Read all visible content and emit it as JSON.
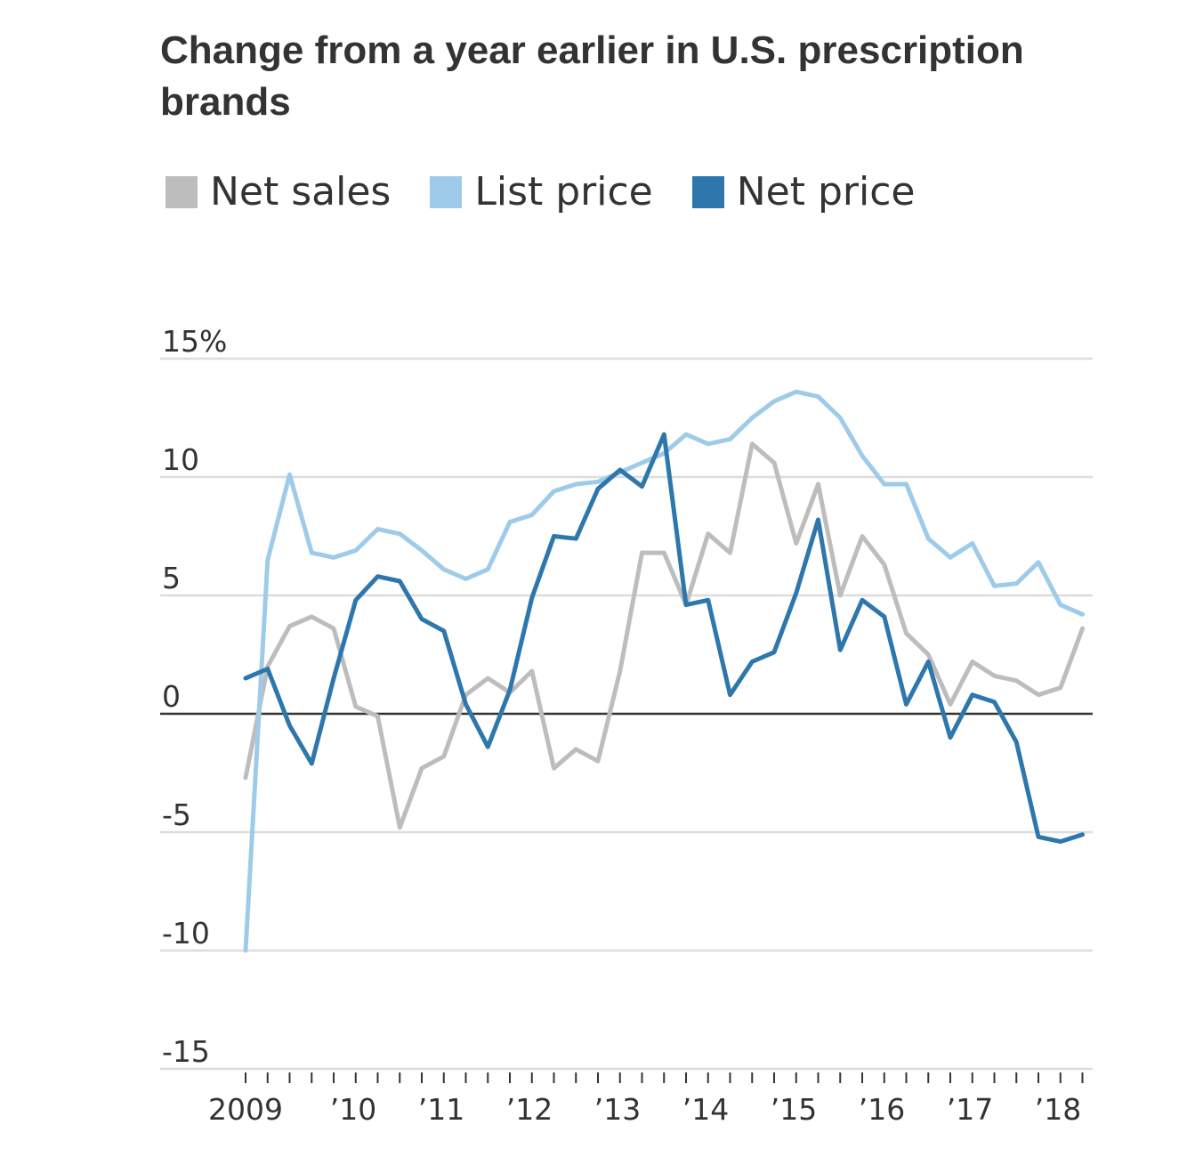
{
  "chart_data": {
    "type": "line",
    "title": "Change from a year earlier in U.S. prescription brands",
    "ylim": [
      -15,
      15
    ],
    "y_ticks": [
      15,
      10,
      5,
      0,
      -5,
      -10,
      -15
    ],
    "y_tick_labels": [
      "15%",
      "10",
      "5",
      "0",
      "-5",
      "-10",
      "-15"
    ],
    "x_tick_labels": [
      "2009",
      "’10",
      "’11",
      "’12",
      "’13",
      "’14",
      "’15",
      "’16",
      "’17",
      "’18"
    ],
    "x_tick_years": [
      2009,
      2010,
      2011,
      2012,
      2013,
      2014,
      2015,
      2016,
      2017,
      2018
    ],
    "x_quarters_start": 2009.0,
    "x_quarter_step": 0.25,
    "grid": true,
    "legend_position": "top-left",
    "series": [
      {
        "name": "Net sales",
        "color": "#bdbdbd",
        "values": [
          -2.7,
          2.0,
          3.7,
          4.1,
          3.6,
          0.3,
          -0.1,
          -4.8,
          -2.3,
          -1.8,
          0.8,
          1.5,
          0.9,
          1.8,
          -2.3,
          -1.5,
          -2.0,
          1.8,
          6.8,
          6.8,
          4.6,
          7.6,
          6.8,
          11.4,
          10.6,
          7.2,
          9.7,
          5.0,
          7.5,
          6.3,
          3.4,
          2.5,
          0.4,
          2.2,
          1.6,
          1.4,
          0.8,
          1.1,
          3.6
        ]
      },
      {
        "name": "List price",
        "color": "#9ecbea",
        "values": [
          -10.0,
          6.5,
          10.1,
          6.8,
          6.6,
          6.9,
          7.8,
          7.6,
          6.9,
          6.1,
          5.7,
          6.1,
          8.1,
          8.4,
          9.4,
          9.7,
          9.8,
          10.2,
          10.6,
          11.0,
          11.8,
          11.4,
          11.6,
          12.5,
          13.2,
          13.6,
          13.4,
          12.5,
          10.9,
          9.7,
          9.7,
          7.4,
          6.6,
          7.2,
          5.4,
          5.5,
          6.4,
          4.6,
          4.2
        ]
      },
      {
        "name": "Net price",
        "color": "#2e77ad",
        "values": [
          1.5,
          1.9,
          -0.5,
          -2.1,
          1.5,
          4.8,
          5.8,
          5.6,
          4.0,
          3.5,
          0.4,
          -1.4,
          1.0,
          4.9,
          7.5,
          7.4,
          9.5,
          10.3,
          9.6,
          11.8,
          4.6,
          4.8,
          0.8,
          2.2,
          2.6,
          5.1,
          8.2,
          2.7,
          4.8,
          4.1,
          0.4,
          2.2,
          -1.0,
          0.8,
          0.5,
          -1.2,
          -5.2,
          -5.4,
          -5.1
        ]
      }
    ]
  }
}
